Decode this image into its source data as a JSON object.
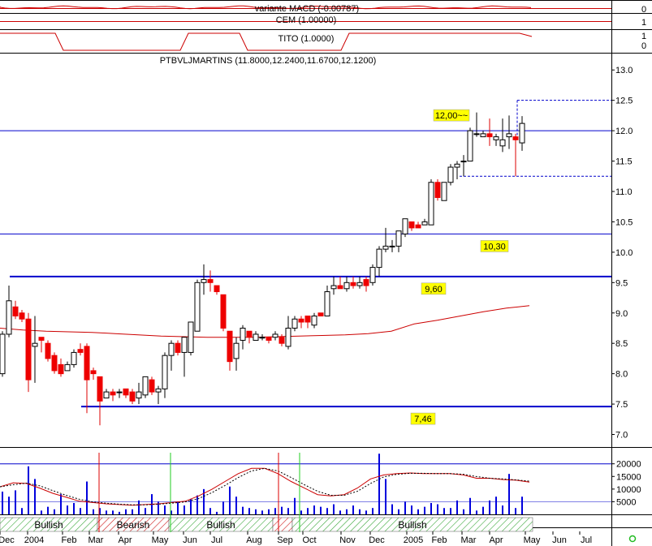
{
  "chart_data": {
    "type": "candlestick",
    "title": "PTBVLJMARTINS (11.8000,12.2400,11.6700,12.1200)",
    "panels": {
      "macd": {
        "label": "variante MACD (-0.00787)",
        "ticks": [
          "0"
        ]
      },
      "cem": {
        "label": "CEM (1.00000)",
        "ticks": [
          "1"
        ]
      },
      "tito": {
        "label": "TITO (1.0000)",
        "ticks": [
          "1",
          "0"
        ]
      }
    },
    "price_axis": {
      "ylim": [
        6.9,
        13.15
      ],
      "ticks": [
        "13.0",
        "12.5",
        "12.0",
        "11.5",
        "11.0",
        "10.5",
        "10.0",
        "9.5",
        "9.0",
        "8.5",
        "8.0",
        "7.5",
        "7.0"
      ]
    },
    "volume_axis": {
      "ylim": [
        0,
        26000
      ],
      "ticks": [
        "20000",
        "15000",
        "10000",
        "5000"
      ]
    },
    "x_labels": [
      "Dec",
      "2004",
      "Feb",
      "Mar",
      "Apr",
      "May",
      "Jun",
      "Jul",
      "Aug",
      "Sep",
      "Oct",
      "Nov",
      "Dec",
      "2005",
      "Feb",
      "Mar",
      "Apr",
      "May",
      "Jun",
      "Jul"
    ],
    "levels": [
      {
        "value": 12.0,
        "label": "12,00~~"
      },
      {
        "value": 10.3,
        "label": "10,30"
      },
      {
        "value": 9.6,
        "label": "9,60"
      },
      {
        "value": 7.46,
        "label": "7,46"
      }
    ],
    "bands": [
      {
        "label": "Bullish",
        "trend": "bull",
        "from": 0,
        "to": 15
      },
      {
        "label": "Bearish",
        "trend": "bear",
        "from": 15,
        "to": 26
      },
      {
        "label": "Bullish",
        "trend": "bull",
        "from": 26,
        "to": 42
      },
      {
        "label": "",
        "trend": "bear",
        "from": 42,
        "to": 45
      },
      {
        "label": "Bullish",
        "trend": "bull",
        "from": 45,
        "to": 82
      }
    ],
    "candles": [
      {
        "o": 8.0,
        "h": 8.7,
        "l": 7.95,
        "c": 8.65
      },
      {
        "o": 8.65,
        "h": 9.45,
        "l": 8.6,
        "c": 9.2
      },
      {
        "o": 9.1,
        "h": 9.2,
        "l": 8.9,
        "c": 8.95
      },
      {
        "o": 9.0,
        "h": 9.05,
        "l": 8.85,
        "c": 8.9
      },
      {
        "o": 8.9,
        "h": 9.0,
        "l": 7.7,
        "c": 7.9
      },
      {
        "o": 8.45,
        "h": 8.95,
        "l": 7.85,
        "c": 8.5
      },
      {
        "o": 8.6,
        "h": 8.6,
        "l": 8.35,
        "c": 8.55
      },
      {
        "o": 8.5,
        "h": 8.55,
        "l": 8.2,
        "c": 8.25
      },
      {
        "o": 8.3,
        "h": 8.35,
        "l": 8.0,
        "c": 8.05
      },
      {
        "o": 8.15,
        "h": 8.25,
        "l": 7.95,
        "c": 8.0
      },
      {
        "o": 8.05,
        "h": 8.2,
        "l": 8.05,
        "c": 8.15
      },
      {
        "o": 8.15,
        "h": 8.4,
        "l": 8.1,
        "c": 8.35
      },
      {
        "o": 8.4,
        "h": 8.5,
        "l": 8.3,
        "c": 8.35
      },
      {
        "o": 8.45,
        "h": 8.5,
        "l": 7.35,
        "c": 7.9
      },
      {
        "o": 8.05,
        "h": 8.1,
        "l": 7.9,
        "c": 8.0
      },
      {
        "o": 7.95,
        "h": 7.95,
        "l": 7.15,
        "c": 7.55
      },
      {
        "o": 7.6,
        "h": 7.75,
        "l": 7.6,
        "c": 7.7
      },
      {
        "o": 7.7,
        "h": 7.75,
        "l": 7.55,
        "c": 7.65
      },
      {
        "o": 7.7,
        "h": 7.75,
        "l": 7.6,
        "c": 7.7
      },
      {
        "o": 7.75,
        "h": 7.75,
        "l": 7.6,
        "c": 7.65
      },
      {
        "o": 7.7,
        "h": 7.75,
        "l": 7.5,
        "c": 7.55
      },
      {
        "o": 7.6,
        "h": 7.85,
        "l": 7.5,
        "c": 7.7
      },
      {
        "o": 7.65,
        "h": 7.95,
        "l": 7.6,
        "c": 7.95
      },
      {
        "o": 7.9,
        "h": 7.95,
        "l": 7.65,
        "c": 7.7
      },
      {
        "o": 7.7,
        "h": 7.8,
        "l": 7.5,
        "c": 7.75
      },
      {
        "o": 7.75,
        "h": 8.35,
        "l": 7.6,
        "c": 8.3
      },
      {
        "o": 8.3,
        "h": 8.55,
        "l": 8.05,
        "c": 8.5
      },
      {
        "o": 8.5,
        "h": 8.55,
        "l": 8.3,
        "c": 8.35
      },
      {
        "o": 8.35,
        "h": 8.6,
        "l": 7.95,
        "c": 8.6
      },
      {
        "o": 8.35,
        "h": 8.85,
        "l": 8.3,
        "c": 8.85
      },
      {
        "o": 8.7,
        "h": 9.55,
        "l": 8.7,
        "c": 9.5
      },
      {
        "o": 9.5,
        "h": 9.8,
        "l": 9.3,
        "c": 9.55
      },
      {
        "o": 9.55,
        "h": 9.7,
        "l": 9.35,
        "c": 9.5
      },
      {
        "o": 9.45,
        "h": 9.45,
        "l": 9.3,
        "c": 9.35
      },
      {
        "o": 9.3,
        "h": 9.3,
        "l": 8.7,
        "c": 8.75
      },
      {
        "o": 8.7,
        "h": 8.7,
        "l": 8.05,
        "c": 8.2
      },
      {
        "o": 8.25,
        "h": 8.6,
        "l": 8.05,
        "c": 8.5
      },
      {
        "o": 8.55,
        "h": 8.8,
        "l": 8.4,
        "c": 8.75
      },
      {
        "o": 8.7,
        "h": 8.7,
        "l": 8.5,
        "c": 8.6
      },
      {
        "o": 8.55,
        "h": 8.7,
        "l": 8.55,
        "c": 8.65
      },
      {
        "o": 8.6,
        "h": 8.65,
        "l": 8.55,
        "c": 8.6
      },
      {
        "o": 8.6,
        "h": 8.6,
        "l": 8.5,
        "c": 8.55
      },
      {
        "o": 8.6,
        "h": 8.7,
        "l": 8.55,
        "c": 8.65
      },
      {
        "o": 8.6,
        "h": 8.65,
        "l": 8.45,
        "c": 8.5
      },
      {
        "o": 8.45,
        "h": 8.95,
        "l": 8.4,
        "c": 8.75
      },
      {
        "o": 8.75,
        "h": 8.95,
        "l": 8.7,
        "c": 8.9
      },
      {
        "o": 8.9,
        "h": 8.95,
        "l": 8.75,
        "c": 8.85
      },
      {
        "o": 8.95,
        "h": 8.95,
        "l": 8.75,
        "c": 8.85
      },
      {
        "o": 8.8,
        "h": 9.0,
        "l": 8.75,
        "c": 8.95
      },
      {
        "o": 9.0,
        "h": 9.0,
        "l": 8.95,
        "c": 8.95
      },
      {
        "o": 8.95,
        "h": 9.45,
        "l": 8.95,
        "c": 9.35
      },
      {
        "o": 9.4,
        "h": 9.6,
        "l": 9.3,
        "c": 9.45
      },
      {
        "o": 9.45,
        "h": 9.6,
        "l": 9.4,
        "c": 9.4
      },
      {
        "o": 9.4,
        "h": 9.6,
        "l": 9.35,
        "c": 9.5
      },
      {
        "o": 9.5,
        "h": 9.6,
        "l": 9.4,
        "c": 9.45
      },
      {
        "o": 9.45,
        "h": 9.6,
        "l": 9.4,
        "c": 9.5
      },
      {
        "o": 9.55,
        "h": 9.6,
        "l": 9.35,
        "c": 9.45
      },
      {
        "o": 9.5,
        "h": 9.8,
        "l": 9.45,
        "c": 9.75
      },
      {
        "o": 9.75,
        "h": 10.1,
        "l": 9.6,
        "c": 10.05
      },
      {
        "o": 10.05,
        "h": 10.4,
        "l": 10.0,
        "c": 10.1
      },
      {
        "o": 10.1,
        "h": 10.2,
        "l": 10.0,
        "c": 10.1
      },
      {
        "o": 10.1,
        "h": 10.35,
        "l": 10.0,
        "c": 10.35
      },
      {
        "o": 10.3,
        "h": 10.55,
        "l": 10.25,
        "c": 10.55
      },
      {
        "o": 10.5,
        "h": 10.5,
        "l": 10.35,
        "c": 10.4
      },
      {
        "o": 10.45,
        "h": 10.5,
        "l": 10.4,
        "c": 10.4
      },
      {
        "o": 10.45,
        "h": 10.55,
        "l": 10.45,
        "c": 10.5
      },
      {
        "o": 10.45,
        "h": 11.2,
        "l": 10.45,
        "c": 11.15
      },
      {
        "o": 11.15,
        "h": 11.2,
        "l": 10.85,
        "c": 10.9
      },
      {
        "o": 10.85,
        "h": 11.15,
        "l": 10.85,
        "c": 11.15
      },
      {
        "o": 11.15,
        "h": 11.45,
        "l": 11.1,
        "c": 11.4
      },
      {
        "o": 11.4,
        "h": 11.5,
        "l": 11.2,
        "c": 11.45
      },
      {
        "o": 11.5,
        "h": 11.6,
        "l": 11.25,
        "c": 11.5
      },
      {
        "o": 11.5,
        "h": 12.05,
        "l": 11.5,
        "c": 12.0
      },
      {
        "o": 11.95,
        "h": 12.3,
        "l": 11.9,
        "c": 11.95
      },
      {
        "o": 11.9,
        "h": 12.0,
        "l": 11.9,
        "c": 11.95
      },
      {
        "o": 11.95,
        "h": 12.2,
        "l": 11.75,
        "c": 11.9
      },
      {
        "o": 11.85,
        "h": 11.95,
        "l": 11.75,
        "c": 11.9
      },
      {
        "o": 11.75,
        "h": 12.2,
        "l": 11.65,
        "c": 11.85
      },
      {
        "o": 11.9,
        "h": 12.25,
        "l": 11.7,
        "c": 11.95
      },
      {
        "o": 11.9,
        "h": 11.95,
        "l": 11.25,
        "c": 11.85
      },
      {
        "o": 11.8,
        "h": 12.24,
        "l": 11.67,
        "c": 12.12
      }
    ],
    "ma_line": [
      8.75,
      8.72,
      8.7,
      8.69,
      8.68,
      8.66,
      8.64,
      8.62,
      8.61,
      8.6,
      8.6,
      8.6,
      8.61,
      8.62,
      8.63,
      8.64,
      8.66,
      8.7,
      8.82,
      8.88,
      8.95,
      9.02,
      9.08,
      9.12
    ],
    "volume": [
      9000,
      7000,
      9500,
      2500,
      19000,
      14000,
      1500,
      3000,
      2000,
      8000,
      3500,
      4500,
      2500,
      13000,
      2000,
      2500,
      1500,
      1500,
      1000,
      2000,
      2000,
      5500,
      2500,
      8000,
      5000,
      3500,
      1500,
      5000,
      3500,
      6000,
      7500,
      10000,
      2500,
      1000,
      5000,
      11000,
      7000,
      3000,
      2500,
      2000,
      1500,
      2000,
      2500,
      3000,
      2500,
      6500,
      1500,
      2500,
      3500,
      3000,
      2500,
      4000,
      1500,
      2000,
      3500,
      2000,
      1500,
      2500,
      24000,
      14000,
      4000,
      2000,
      5000,
      3500,
      2000,
      3000,
      4500,
      4000,
      2500,
      2500,
      5500,
      2000,
      6500,
      1500,
      3000,
      5500,
      7000,
      3500,
      16000,
      2500,
      7000
    ],
    "vol_k": [
      0.42,
      0.48,
      0.47,
      0.4,
      0.32,
      0.26,
      0.2,
      0.18,
      0.16,
      0.15,
      0.14,
      0.15,
      0.16,
      0.18,
      0.2,
      0.28,
      0.38,
      0.5,
      0.62,
      0.7,
      0.7,
      0.62,
      0.5,
      0.4,
      0.3,
      0.28,
      0.3,
      0.4,
      0.54,
      0.6,
      0.62,
      0.63,
      0.62,
      0.62,
      0.62,
      0.6,
      0.55,
      0.55,
      0.53,
      0.52,
      0.49
    ]
  }
}
